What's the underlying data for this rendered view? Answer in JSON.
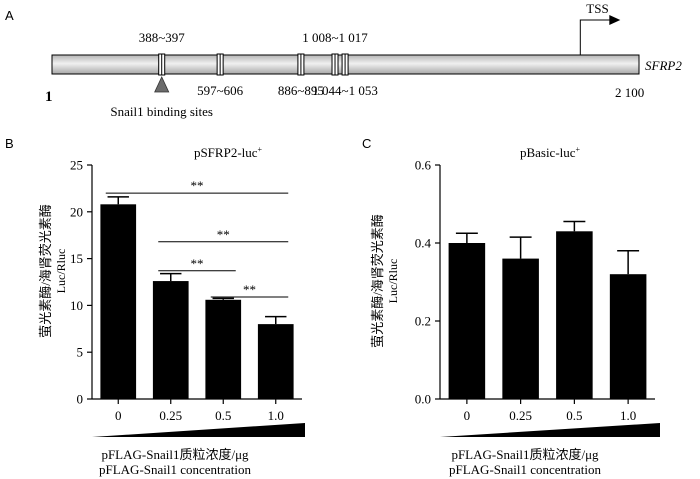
{
  "chart_data": [
    {
      "type": "diagram",
      "panel_label": "A",
      "gene_label": "SFRP2",
      "start_label": "1",
      "end_label": "2 100",
      "length": 2100,
      "tss_label": "TSS",
      "tss_position": 1890,
      "sites": [
        {
          "label": "388~397",
          "start": 388,
          "end": 397,
          "label_side": "above"
        },
        {
          "label": "597~606",
          "start": 597,
          "end": 606,
          "label_side": "below"
        },
        {
          "label": "886~895",
          "start": 886,
          "end": 895,
          "label_side": "below"
        },
        {
          "label": "1 008~1 017",
          "start": 1008,
          "end": 1017,
          "label_side": "above"
        },
        {
          "label": "1 044~1 053",
          "start": 1044,
          "end": 1053,
          "label_side": "below"
        }
      ],
      "marker_site_index": 0,
      "marker_label": "Snail1 binding sites"
    },
    {
      "type": "bar",
      "panel_label": "B",
      "title": "pSFRP2-luc",
      "title_sup": "+",
      "categories": [
        "0",
        "0.25",
        "0.5",
        "1.0"
      ],
      "values": [
        20.8,
        12.6,
        10.6,
        8.0
      ],
      "errors": [
        0.8,
        0.8,
        0.15,
        0.8
      ],
      "ylim": [
        0,
        25
      ],
      "yticks": [
        "0",
        "5",
        "10",
        "15",
        "20",
        "25"
      ],
      "ylabel_cn": "萤光素酶/海肾荧光素酶",
      "ylabel_en": "Luc/Rluc",
      "xlabel_cn": "pFLAG-Snail1质粒浓度/μg",
      "xlabel_en": "pFLAG-Snail1 concentration",
      "significance": [
        {
          "from": 0,
          "to": 3,
          "y": 22.0,
          "label": "**"
        },
        {
          "from": 1,
          "to": 3,
          "y": 16.8,
          "label": "**"
        },
        {
          "from": 1,
          "to": 2,
          "y": 13.7,
          "label": "**"
        },
        {
          "from": 2,
          "to": 3,
          "y": 10.9,
          "label": "**"
        }
      ]
    },
    {
      "type": "bar",
      "panel_label": "C",
      "title": "pBasic-luc",
      "title_sup": "+",
      "categories": [
        "0",
        "0.25",
        "0.5",
        "1.0"
      ],
      "values": [
        0.4,
        0.36,
        0.43,
        0.32
      ],
      "errors": [
        0.025,
        0.055,
        0.025,
        0.06
      ],
      "ylim": [
        0,
        0.6
      ],
      "yticks": [
        "0.0",
        "0.2",
        "0.4",
        "0.6"
      ],
      "ylabel_cn": "萤光素酶/海肾荧光素酶",
      "ylabel_en": "Luc/Rluc",
      "xlabel_cn": "pFLAG-Snail1质粒浓度/μg",
      "xlabel_en": "pFLAG-Snail1 concentration",
      "significance": []
    }
  ]
}
